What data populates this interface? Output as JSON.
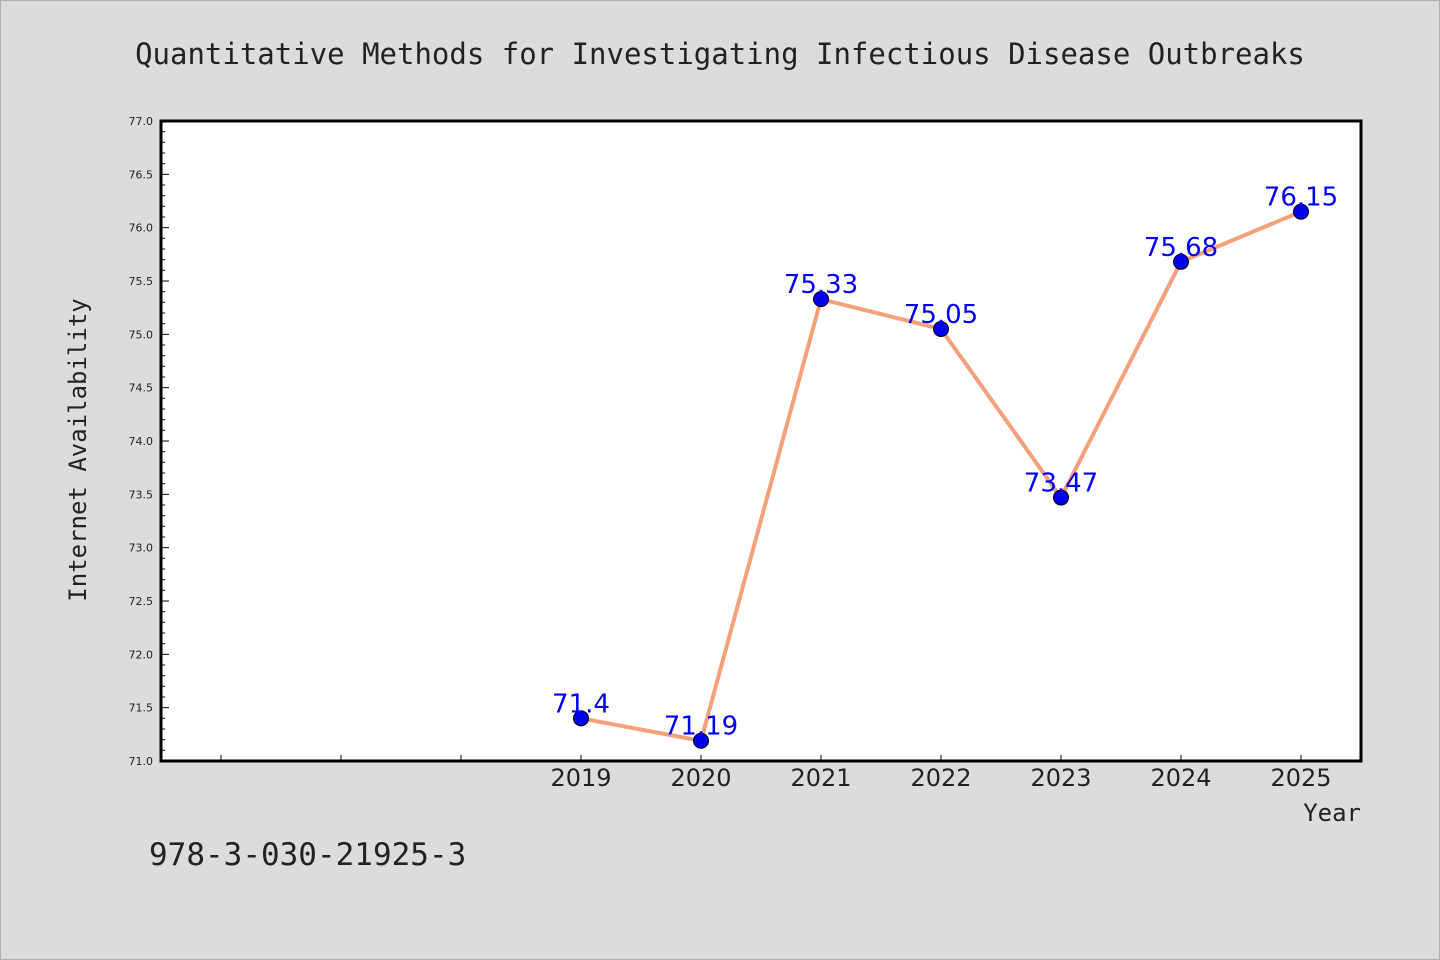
{
  "chart_data": {
    "type": "line",
    "title": "Quantitative Methods for Investigating Infectious Disease Outbreaks",
    "xlabel": "Year",
    "ylabel": "Internet Availability",
    "categories": [
      "2019",
      "2020",
      "2021",
      "2022",
      "2023",
      "2024",
      "2025"
    ],
    "series": [
      {
        "values": [
          71.4,
          71.19,
          75.33,
          75.05,
          73.47,
          75.68,
          76.15
        ],
        "data_labels": [
          "71.4",
          "71.19",
          "75.33",
          "75.05",
          "73.47",
          "75.68",
          "76.15"
        ]
      }
    ],
    "ylim": [
      71.0,
      77.0
    ],
    "yticks": [
      "71.0",
      "71.5",
      "72.0",
      "72.5",
      "73.0",
      "73.5",
      "74.0",
      "74.5",
      "75.0",
      "75.5",
      "76.0",
      "76.5",
      "77.0"
    ],
    "xlim": [
      2015.5,
      2025.5
    ],
    "grid": false,
    "legend": "none",
    "colors": {
      "line": "#f4a07a",
      "marker": "#0000ee",
      "data_label": "#0000ff",
      "background": "#dcdcdc",
      "plot_background": "#ffffff"
    }
  },
  "footer": {
    "isbn": "978-3-030-21925-3"
  }
}
